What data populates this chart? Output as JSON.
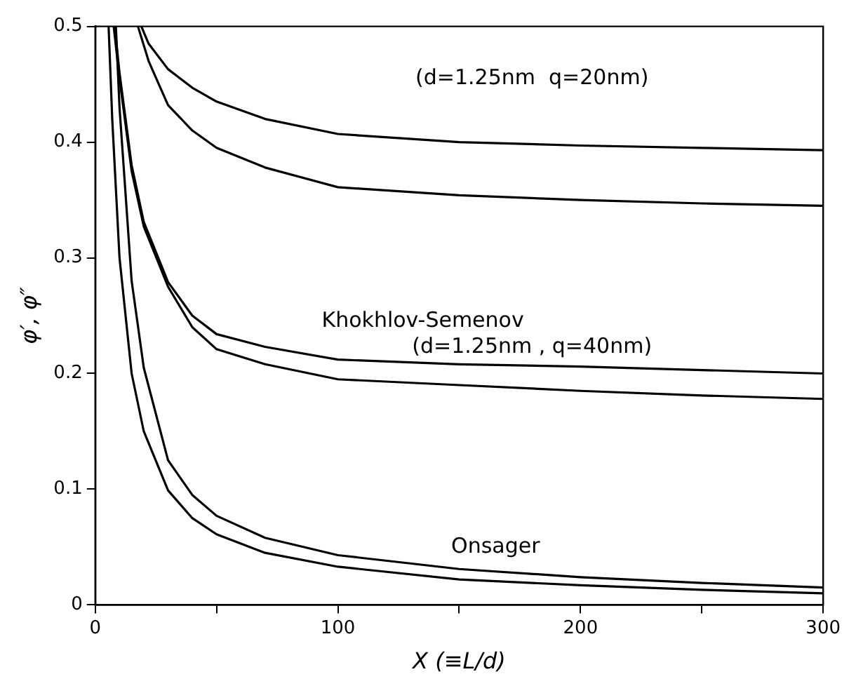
{
  "chart_data": {
    "type": "line",
    "xlabel": "X (≡L/d)",
    "ylabel": "φ′, φ″",
    "xlim": [
      0,
      300
    ],
    "ylim": [
      0,
      0.5
    ],
    "xticks": [
      0,
      {
        "value": 50,
        "label": null
      },
      100,
      {
        "value": 150,
        "label": null
      },
      200,
      {
        "value": 250,
        "label": null
      },
      300
    ],
    "yticks": [
      0,
      0.1,
      0.2,
      0.3,
      0.4,
      0.5
    ],
    "grid": false,
    "legend": false,
    "marker": "none",
    "line_style": "solid",
    "series": [
      {
        "color": "#000000",
        "x": [
          19,
          22,
          30,
          40,
          50,
          70,
          100,
          150,
          200,
          250,
          300
        ],
        "values": [
          0.5,
          0.485,
          0.463,
          0.447,
          0.435,
          0.42,
          0.407,
          0.4,
          0.397,
          0.395,
          0.393
        ]
      },
      {
        "color": "#000000",
        "x": [
          17.6,
          22,
          30,
          40,
          50,
          70,
          100,
          150,
          200,
          250,
          300
        ],
        "values": [
          0.5,
          0.47,
          0.432,
          0.41,
          0.395,
          0.378,
          0.361,
          0.354,
          0.35,
          0.347,
          0.345
        ]
      },
      {
        "color": "#000000",
        "x": [
          8,
          10,
          15,
          20,
          30,
          40,
          50,
          70,
          100,
          150,
          200,
          250,
          300
        ],
        "values": [
          0.5,
          0.46,
          0.38,
          0.331,
          0.279,
          0.25,
          0.234,
          0.223,
          0.212,
          0.208,
          0.206,
          0.203,
          0.2
        ]
      },
      {
        "color": "#000000",
        "x": [
          7.6,
          10,
          15,
          20,
          30,
          40,
          50,
          70,
          100,
          150,
          200,
          250,
          300
        ],
        "values": [
          0.5,
          0.455,
          0.375,
          0.327,
          0.275,
          0.24,
          0.221,
          0.208,
          0.195,
          0.19,
          0.185,
          0.181,
          0.178
        ]
      },
      {
        "color": "#000000",
        "x": [
          8.5,
          10,
          15,
          20,
          30,
          40,
          50,
          70,
          100,
          150,
          200,
          250,
          300
        ],
        "values": [
          0.5,
          0.43,
          0.28,
          0.205,
          0.125,
          0.095,
          0.077,
          0.058,
          0.043,
          0.031,
          0.024,
          0.019,
          0.015
        ]
      },
      {
        "color": "#000000",
        "x": [
          5.5,
          7,
          10,
          15,
          20,
          30,
          40,
          50,
          70,
          100,
          150,
          200,
          250,
          300
        ],
        "values": [
          0.5,
          0.42,
          0.3,
          0.2,
          0.15,
          0.099,
          0.075,
          0.061,
          0.045,
          0.033,
          0.022,
          0.017,
          0.013,
          0.01
        ]
      }
    ],
    "annotations": [
      "(d=1.25nm  q=20nm)",
      "Khokhlov-Semenov",
      "(d=1.25nm , q=40nm)",
      "Onsager"
    ]
  }
}
